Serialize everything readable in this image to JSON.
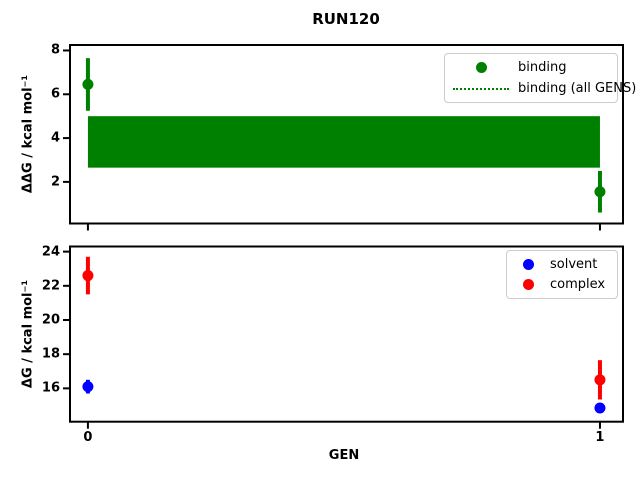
{
  "figure": {
    "title": "RUN120",
    "xlabel": "GEN",
    "background": "#ffffff"
  },
  "colors": {
    "binding": "#008000",
    "solvent": "#0000ff",
    "complex": "#ff0000",
    "axes": "#000000",
    "legend_border": "#cccccc"
  },
  "chart_data": [
    {
      "type": "scatter",
      "subplot": "top",
      "ylabel": "ΔΔG / kcal mol⁻¹",
      "xlabel": "",
      "xlim": [
        -0.035,
        1.045
      ],
      "ylim": [
        0.1,
        8.25
      ],
      "yticks": [
        2,
        4,
        6,
        8
      ],
      "xticks": [
        0,
        1
      ],
      "xticklabels_visible": false,
      "grid": false,
      "series": [
        {
          "name": "binding",
          "style": "errorbar-scatter",
          "color": "#008000",
          "x": [
            0,
            1
          ],
          "y": [
            6.45,
            1.55
          ],
          "yerr": [
            1.2,
            0.95
          ]
        },
        {
          "name": "binding (all GENS)",
          "style": "band",
          "linestyle": "dotted",
          "color": "#008000",
          "x": [
            0,
            1
          ],
          "center": 3.83,
          "lo": 2.65,
          "hi": 5.0
        }
      ],
      "legend": {
        "position": "upper right",
        "entries": [
          {
            "label": "binding",
            "handle": "dot",
            "color": "#008000"
          },
          {
            "label": "binding (all GENS)",
            "handle": "dotted-line",
            "color": "#008000"
          }
        ]
      }
    },
    {
      "type": "scatter",
      "subplot": "bottom",
      "ylabel": "ΔG / kcal mol⁻¹",
      "xlabel": "GEN",
      "xlim": [
        -0.035,
        1.045
      ],
      "ylim": [
        14.05,
        24.3
      ],
      "yticks": [
        16,
        18,
        20,
        22,
        24
      ],
      "xticks": [
        0,
        1
      ],
      "xticklabels_visible": true,
      "grid": false,
      "series": [
        {
          "name": "solvent",
          "style": "errorbar-scatter",
          "color": "#0000ff",
          "x": [
            0,
            1
          ],
          "y": [
            16.1,
            14.85
          ],
          "yerr": [
            0.4,
            0.2
          ]
        },
        {
          "name": "complex",
          "style": "errorbar-scatter",
          "color": "#ff0000",
          "x": [
            0,
            1
          ],
          "y": [
            22.6,
            16.5
          ],
          "yerr": [
            1.1,
            1.15
          ]
        }
      ],
      "legend": {
        "position": "upper right",
        "entries": [
          {
            "label": "solvent",
            "handle": "dot",
            "color": "#0000ff"
          },
          {
            "label": "complex",
            "handle": "dot",
            "color": "#ff0000"
          }
        ]
      }
    }
  ]
}
